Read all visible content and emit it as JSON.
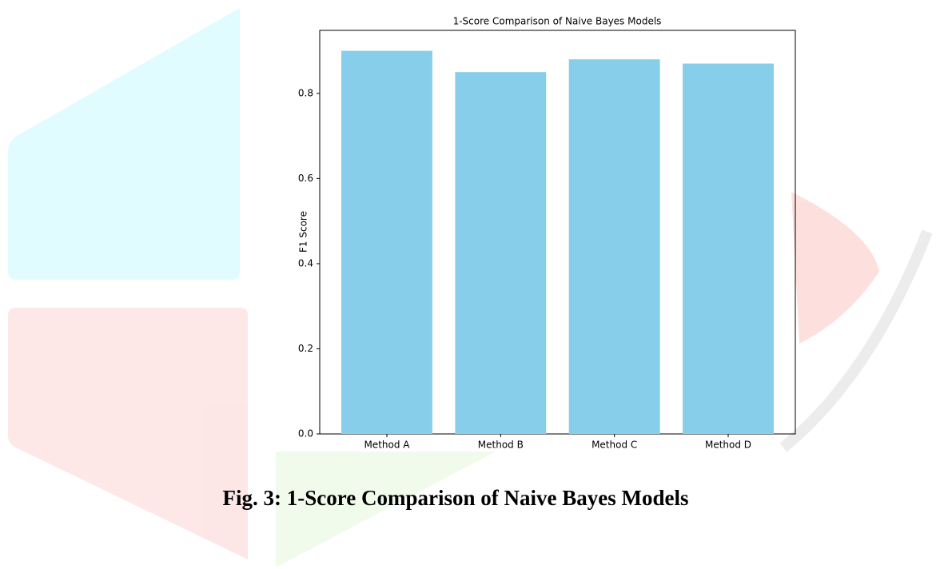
{
  "chart_data": {
    "type": "bar",
    "title": "1-Score Comparison of Naive Bayes Models",
    "y_label": "F1 Score",
    "categories": [
      "Method A",
      "Method B",
      "Method C",
      "Method D"
    ],
    "values": [
      0.9,
      0.85,
      0.88,
      0.87
    ],
    "color": "#87ceeb",
    "ylim": [
      0,
      0.948
    ],
    "yticks": [
      {
        "value": 0,
        "label": "0.0"
      },
      0.2,
      0.4,
      0.6,
      0.8
    ],
    "grid": false
  },
  "caption": "Fig. 3: 1-Score Comparison of Naive Bayes Models"
}
